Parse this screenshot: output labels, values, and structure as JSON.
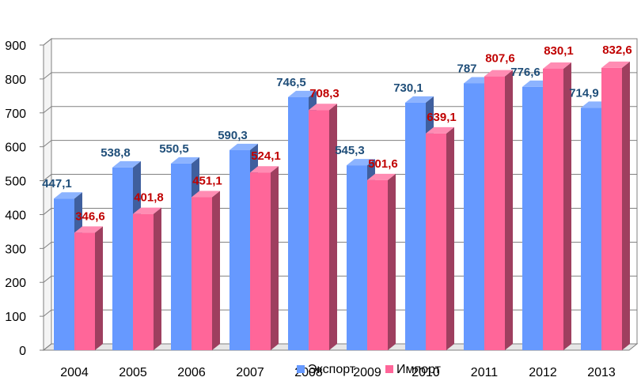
{
  "chart_data": {
    "type": "bar",
    "categories": [
      "2004",
      "2005",
      "2006",
      "2007",
      "2008",
      "2009",
      "2010",
      "2011",
      "2012",
      "2013"
    ],
    "series": [
      {
        "name": "Экспорт",
        "values": [
          447.1,
          538.8,
          550.5,
          590.3,
          746.5,
          545.3,
          730.1,
          787,
          776.6,
          714.9
        ],
        "labels": [
          "447,1",
          "538,8",
          "550,5",
          "590,3",
          "746,5",
          "545,3",
          "730,1",
          "787",
          "776,6",
          "714,9"
        ],
        "color": "#6699FF",
        "label_color": "#1F4E79"
      },
      {
        "name": "Импорт",
        "values": [
          346.6,
          401.8,
          451.1,
          524.1,
          708.3,
          501.6,
          639.1,
          807.6,
          830.1,
          832.6
        ],
        "labels": [
          "346,6",
          "401,8",
          "451,1",
          "524,1",
          "708,3",
          "501,6",
          "639,1",
          "807,6",
          "830,1",
          "832,6"
        ],
        "color": "#FF6699",
        "label_color": "#C00000"
      }
    ],
    "ylim": [
      0,
      900
    ],
    "yticks": [
      "0",
      "100",
      "200",
      "300",
      "400",
      "500",
      "600",
      "700",
      "800",
      "900"
    ],
    "grid": true,
    "legend_position": "bottom-center",
    "title": "",
    "xlabel": "",
    "ylabel": ""
  }
}
